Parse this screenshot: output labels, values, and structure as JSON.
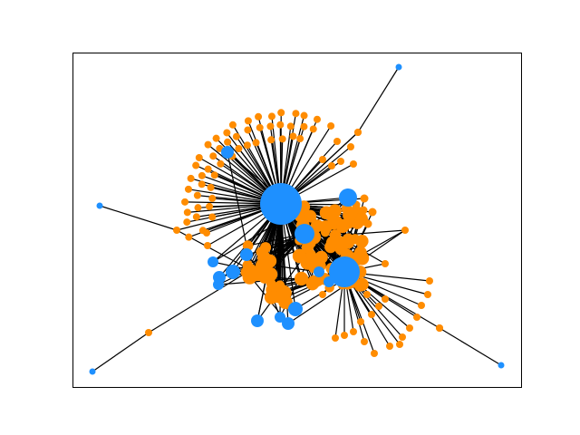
{
  "figure": {
    "title": "",
    "colors": {
      "background": "#ffffff",
      "frame": "#000000",
      "edge": "#000000",
      "hub_node": "#1e90ff",
      "leaf_node": "#ff8c00"
    }
  },
  "chart_data": {
    "type": "network",
    "title": "",
    "xlabel": "",
    "ylabel": "",
    "grid": false,
    "legend": "none",
    "node_groups": [
      {
        "group": "hub",
        "color": "#1e90ff",
        "approx_count": 22
      },
      {
        "group": "leaf",
        "color": "#ff8c00",
        "approx_count": 200
      }
    ],
    "node_size_encoding": "degree",
    "largest_hub_degree_approx": 70
  }
}
